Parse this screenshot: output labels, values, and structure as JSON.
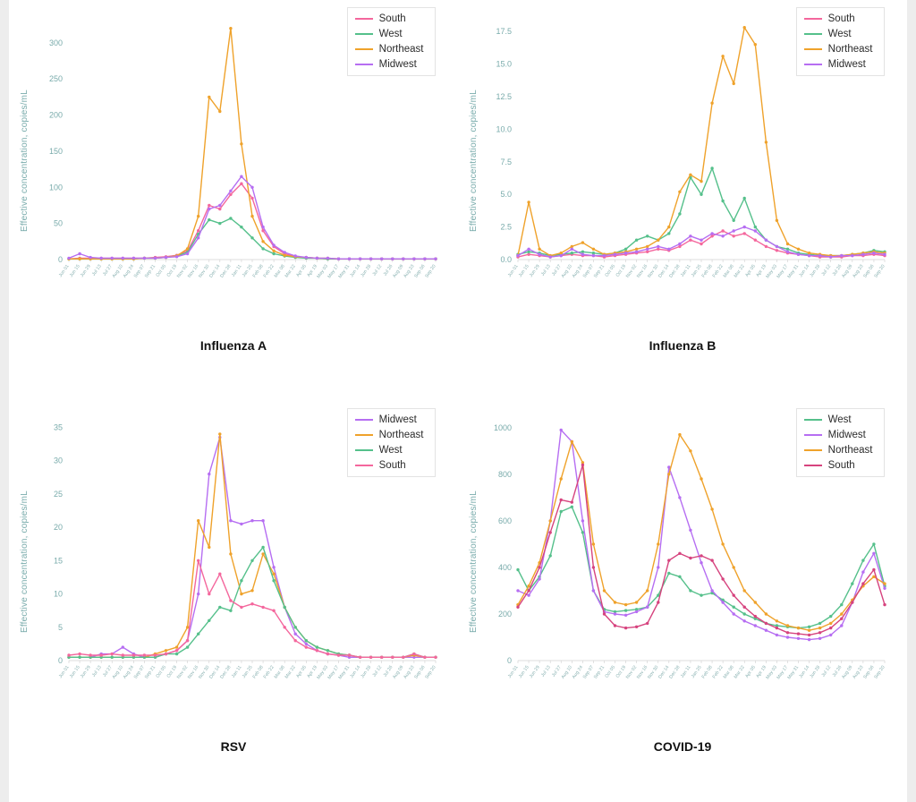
{
  "page": {
    "background": "#ffffff"
  },
  "dates": [
    "Jun 01",
    "Jun 15",
    "Jun 29",
    "Jul 13",
    "Jul 27",
    "Aug 10",
    "Aug 24",
    "Sep 07",
    "Sep 21",
    "Oct 05",
    "Oct 19",
    "Nov 02",
    "Nov 16",
    "Nov 30",
    "Dec 14",
    "Dec 28",
    "Jan 11",
    "Jan 25",
    "Feb 08",
    "Feb 22",
    "Mar 08",
    "Mar 22",
    "Apr 05",
    "Apr 19",
    "May 03",
    "May 17",
    "May 31",
    "Jun 14",
    "Jun 28",
    "Jul 12",
    "Jul 26",
    "Aug 09",
    "Aug 23",
    "Sep 06",
    "Sep 20"
  ],
  "chart_data": [
    {
      "type": "line",
      "title": "Influenza A",
      "ylabel": "Effective concentration, copies/mL",
      "xlabel": "",
      "ylim": [
        0,
        332
      ],
      "yticks": [
        "0",
        "50",
        "100",
        "150",
        "200",
        "250",
        "300"
      ],
      "ytick_values": [
        0,
        50,
        100,
        150,
        200,
        250,
        300
      ],
      "grid": false,
      "legend_position": "top-right",
      "series": [
        {
          "name": "South",
          "color": "#f4679d",
          "values": [
            1,
            2,
            2,
            2,
            2,
            2,
            2,
            2,
            3,
            4,
            6,
            12,
            40,
            75,
            70,
            90,
            105,
            85,
            40,
            18,
            8,
            4,
            3,
            2,
            1,
            1,
            1,
            1,
            1,
            1,
            1,
            1,
            1,
            1,
            1
          ]
        },
        {
          "name": "West",
          "color": "#55c08b",
          "values": [
            1,
            1,
            1,
            1,
            1,
            1,
            1,
            2,
            2,
            3,
            5,
            10,
            35,
            55,
            50,
            57,
            45,
            30,
            15,
            8,
            5,
            3,
            2,
            2,
            1,
            1,
            1,
            1,
            1,
            1,
            1,
            1,
            1,
            1,
            1
          ]
        },
        {
          "name": "Northeast",
          "color": "#efa22b",
          "values": [
            1,
            1,
            1,
            1,
            1,
            1,
            1,
            2,
            2,
            3,
            5,
            15,
            60,
            225,
            205,
            320,
            160,
            60,
            25,
            12,
            6,
            4,
            3,
            2,
            2,
            1,
            1,
            1,
            1,
            1,
            1,
            1,
            1,
            1,
            1
          ]
        },
        {
          "name": "Midwest",
          "color": "#b66ef2",
          "values": [
            2,
            8,
            3,
            2,
            2,
            2,
            2,
            2,
            2,
            3,
            4,
            8,
            30,
            70,
            75,
            95,
            115,
            100,
            45,
            20,
            10,
            5,
            3,
            2,
            2,
            1,
            1,
            1,
            1,
            1,
            1,
            1,
            1,
            1,
            1
          ]
        }
      ]
    },
    {
      "type": "line",
      "title": "Influenza B",
      "ylabel": "Effective concentration, copies/mL",
      "xlabel": "",
      "ylim": [
        0,
        18.4
      ],
      "yticks": [
        "0.0",
        "2.5",
        "5.0",
        "7.5",
        "10.0",
        "12.5",
        "15.0",
        "17.5"
      ],
      "ytick_values": [
        0,
        2.5,
        5,
        7.5,
        10,
        12.5,
        15,
        17.5
      ],
      "grid": false,
      "legend_position": "top-right",
      "series": [
        {
          "name": "South",
          "color": "#f4679d",
          "values": [
            0.2,
            0.4,
            0.3,
            0.2,
            0.3,
            0.4,
            0.3,
            0.3,
            0.2,
            0.3,
            0.4,
            0.5,
            0.6,
            0.8,
            0.7,
            1.0,
            1.5,
            1.2,
            1.8,
            2.2,
            1.8,
            2.0,
            1.5,
            1.0,
            0.7,
            0.5,
            0.4,
            0.3,
            0.2,
            0.2,
            0.2,
            0.3,
            0.3,
            0.4,
            0.3
          ]
        },
        {
          "name": "West",
          "color": "#55c08b",
          "values": [
            0.4,
            0.6,
            0.5,
            0.3,
            0.4,
            0.5,
            0.6,
            0.5,
            0.4,
            0.5,
            0.8,
            1.5,
            1.8,
            1.5,
            2.0,
            3.5,
            6.3,
            5.0,
            7.0,
            4.5,
            3.0,
            4.7,
            2.5,
            1.5,
            1.0,
            0.8,
            0.5,
            0.4,
            0.3,
            0.3,
            0.3,
            0.4,
            0.5,
            0.7,
            0.6
          ]
        },
        {
          "name": "Northeast",
          "color": "#efa22b",
          "values": [
            0.3,
            4.4,
            0.8,
            0.3,
            0.5,
            1.0,
            1.3,
            0.8,
            0.4,
            0.5,
            0.6,
            0.8,
            1.0,
            1.5,
            2.5,
            5.2,
            6.5,
            6.0,
            12.0,
            15.6,
            13.5,
            17.8,
            16.5,
            9.0,
            3.0,
            1.2,
            0.8,
            0.5,
            0.4,
            0.3,
            0.3,
            0.4,
            0.5,
            0.6,
            0.5
          ]
        },
        {
          "name": "Midwest",
          "color": "#b66ef2",
          "values": [
            0.3,
            0.8,
            0.4,
            0.2,
            0.3,
            0.8,
            0.4,
            0.3,
            0.3,
            0.4,
            0.5,
            0.6,
            0.8,
            1.0,
            0.8,
            1.2,
            1.8,
            1.5,
            2.0,
            1.8,
            2.2,
            2.5,
            2.2,
            1.5,
            1.0,
            0.6,
            0.4,
            0.3,
            0.3,
            0.2,
            0.3,
            0.3,
            0.4,
            0.5,
            0.4
          ]
        }
      ]
    },
    {
      "type": "line",
      "title": "RSV",
      "ylabel": "Effective concentration, copies/mL",
      "xlabel": "",
      "ylim": [
        0,
        36
      ],
      "yticks": [
        "0",
        "5",
        "10",
        "15",
        "20",
        "25",
        "30",
        "35"
      ],
      "ytick_values": [
        0,
        5,
        10,
        15,
        20,
        25,
        30,
        35
      ],
      "grid": false,
      "legend_position": "top-right",
      "series": [
        {
          "name": "Midwest",
          "color": "#b66ef2",
          "values": [
            0.5,
            0.5,
            0.5,
            1,
            1,
            2,
            1,
            0.5,
            0.5,
            1,
            1.5,
            3,
            10,
            28,
            33.5,
            21,
            20.5,
            21,
            21,
            14,
            8,
            4,
            2.5,
            1.5,
            1,
            0.8,
            0.5,
            0.5,
            0.5,
            0.5,
            0.5,
            0.5,
            0.5,
            0.5,
            0.5
          ]
        },
        {
          "name": "Northeast",
          "color": "#efa22b",
          "values": [
            0.5,
            0.5,
            0.5,
            0.5,
            0.5,
            0.5,
            0.5,
            0.5,
            1,
            1.5,
            2,
            5,
            21,
            17,
            34,
            16,
            10,
            10.5,
            16,
            13,
            8,
            5,
            3,
            2,
            1.5,
            1,
            0.8,
            0.5,
            0.5,
            0.5,
            0.5,
            0.5,
            0.8,
            0.5,
            0.5
          ]
        },
        {
          "name": "West",
          "color": "#55c08b",
          "values": [
            0.5,
            0.5,
            0.5,
            0.5,
            0.5,
            0.5,
            0.5,
            0.5,
            0.5,
            1,
            1,
            2,
            4,
            6,
            8,
            7.5,
            12,
            15,
            17,
            12,
            8,
            5,
            3,
            2,
            1.5,
            1,
            0.8,
            0.5,
            0.5,
            0.5,
            0.5,
            0.5,
            1,
            0.5,
            0.5
          ]
        },
        {
          "name": "South",
          "color": "#f4679d",
          "values": [
            0.8,
            1,
            0.8,
            0.8,
            1,
            0.8,
            0.8,
            0.8,
            0.8,
            1,
            1.5,
            3,
            15,
            10,
            13,
            9,
            8,
            8.5,
            8,
            7.5,
            5,
            3,
            2,
            1.5,
            1,
            0.8,
            0.8,
            0.5,
            0.5,
            0.5,
            0.5,
            0.5,
            1,
            0.5,
            0.5
          ]
        }
      ]
    },
    {
      "type": "line",
      "title": "COVID-19",
      "ylabel": "Effective concentration, copies/mL",
      "xlabel": "",
      "ylim": [
        0,
        1030
      ],
      "yticks": [
        "0",
        "200",
        "400",
        "600",
        "800",
        "1000"
      ],
      "ytick_values": [
        0,
        200,
        400,
        600,
        800,
        1000
      ],
      "grid": false,
      "legend_position": "top-right",
      "series": [
        {
          "name": "West",
          "color": "#55c08b",
          "values": [
            390,
            300,
            360,
            450,
            640,
            660,
            550,
            300,
            220,
            210,
            215,
            220,
            230,
            280,
            375,
            360,
            300,
            280,
            290,
            260,
            230,
            200,
            180,
            160,
            150,
            145,
            140,
            145,
            160,
            190,
            240,
            330,
            430,
            500,
            320
          ]
        },
        {
          "name": "Midwest",
          "color": "#b66ef2",
          "values": [
            300,
            280,
            350,
            600,
            990,
            940,
            600,
            300,
            210,
            200,
            195,
            210,
            230,
            400,
            830,
            700,
            560,
            420,
            300,
            250,
            200,
            170,
            150,
            130,
            110,
            100,
            95,
            90,
            95,
            110,
            150,
            250,
            380,
            460,
            310
          ]
        },
        {
          "name": "Northeast",
          "color": "#efa22b",
          "values": [
            240,
            320,
            420,
            600,
            780,
            940,
            850,
            500,
            300,
            250,
            240,
            250,
            300,
            500,
            800,
            970,
            900,
            780,
            650,
            500,
            400,
            300,
            250,
            200,
            170,
            150,
            140,
            130,
            140,
            160,
            200,
            260,
            320,
            360,
            330
          ]
        },
        {
          "name": "South",
          "color": "#d6437e",
          "values": [
            230,
            300,
            400,
            550,
            690,
            680,
            840,
            400,
            200,
            150,
            140,
            145,
            160,
            250,
            430,
            460,
            440,
            450,
            430,
            350,
            280,
            230,
            190,
            160,
            140,
            120,
            115,
            110,
            120,
            140,
            180,
            250,
            330,
            390,
            240
          ]
        }
      ]
    }
  ]
}
